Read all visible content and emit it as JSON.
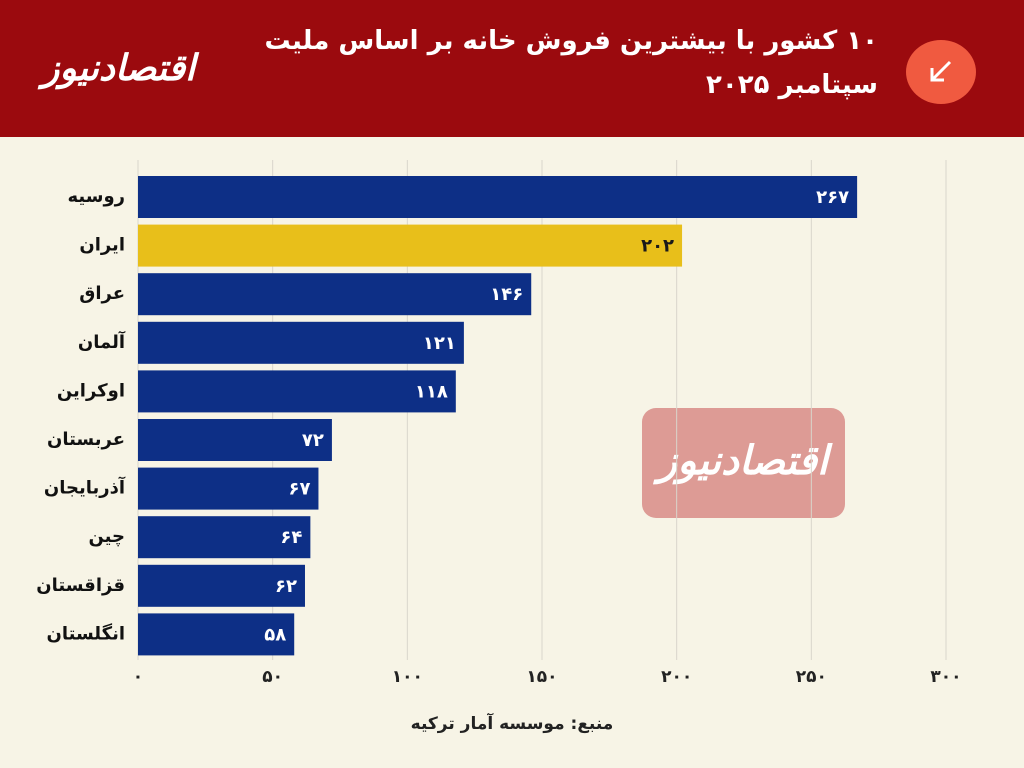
{
  "chart_data": {
    "type": "hbar",
    "logo": "اقتصادنیوز",
    "title": "۱۰ کشور با بیشترین فروش خانه بر اساس ملیت",
    "subtitle": "سپتامبر ۲۰۲۵",
    "categories": [
      "روسیه",
      "ایران",
      "عراق",
      "آلمان",
      "اوکراین",
      "عربستان",
      "آذربایجان",
      "چین",
      "قزاقستان",
      "انگلستان"
    ],
    "values": [
      267,
      202,
      146,
      121,
      118,
      72,
      67,
      64,
      62,
      58
    ],
    "value_labels": [
      "۲۶۷",
      "۲۰۲",
      "۱۴۶",
      "۱۲۱",
      "۱۱۸",
      "۷۲",
      "۶۷",
      "۶۴",
      "۶۲",
      "۵۸"
    ],
    "colors": [
      "#0d2f86",
      "#e8bf1a",
      "#0d2f86",
      "#0d2f86",
      "#0d2f86",
      "#0d2f86",
      "#0d2f86",
      "#0d2f86",
      "#0d2f86",
      "#0d2f86"
    ],
    "xlim": [
      0,
      300
    ],
    "xticks": [
      {
        "value": 0,
        "label": "۰"
      },
      {
        "value": 50,
        "label": "۵۰"
      },
      {
        "value": 100,
        "label": "۱۰۰"
      },
      {
        "value": 150,
        "label": "۱۵۰"
      },
      {
        "value": 200,
        "label": "۲۰۰"
      },
      {
        "value": 250,
        "label": "۲۵۰"
      },
      {
        "value": 300,
        "label": "۳۰۰"
      }
    ],
    "grid": true,
    "source": "منبع: موسسه آمار ترکیه"
  }
}
